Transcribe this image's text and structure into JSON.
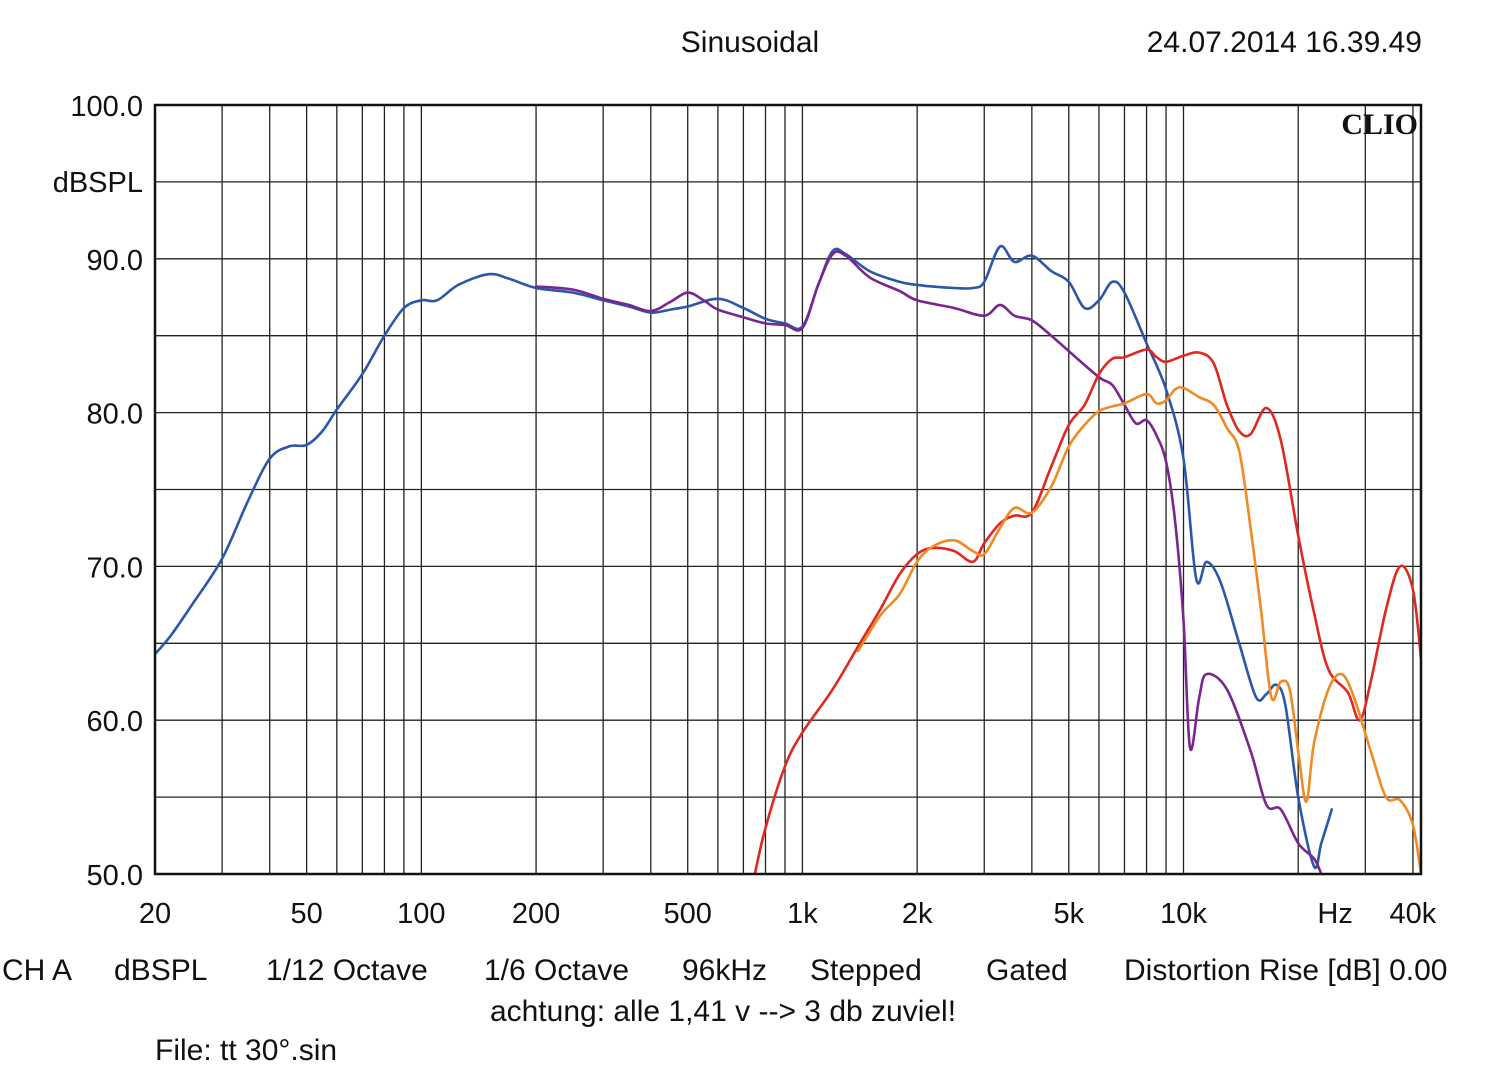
{
  "header": {
    "title": "Sinusoidal",
    "timestamp": "24.07.2014 16.39.49"
  },
  "chart_data": {
    "type": "line",
    "title": "Sinusoidal",
    "watermark": "CLIO",
    "ylabel": "dBSPL",
    "xlabel": "Hz",
    "xscale": "log",
    "xlim": [
      20,
      42000
    ],
    "ylim": [
      50,
      100
    ],
    "grid": true,
    "yticks": [
      {
        "v": 100,
        "label": "100.0"
      },
      {
        "v": 90,
        "label": "90.0"
      },
      {
        "v": 80,
        "label": "80.0"
      },
      {
        "v": 70,
        "label": "70.0"
      },
      {
        "v": 60,
        "label": "60.0"
      },
      {
        "v": 50,
        "label": "50.0"
      }
    ],
    "xticks": [
      {
        "v": 20,
        "label": "20"
      },
      {
        "v": 50,
        "label": "50"
      },
      {
        "v": 100,
        "label": "100"
      },
      {
        "v": 200,
        "label": "200"
      },
      {
        "v": 500,
        "label": "500"
      },
      {
        "v": 1000,
        "label": "1k"
      },
      {
        "v": 2000,
        "label": "2k"
      },
      {
        "v": 5000,
        "label": "5k"
      },
      {
        "v": 10000,
        "label": "10k"
      },
      {
        "v": 40000,
        "label": "40k"
      }
    ],
    "series": [
      {
        "color": "#2b57a8",
        "points": [
          [
            20,
            64.3
          ],
          [
            22,
            65.5
          ],
          [
            25,
            67.5
          ],
          [
            30,
            70.5
          ],
          [
            35,
            74.2
          ],
          [
            40,
            77.0
          ],
          [
            45,
            77.8
          ],
          [
            50,
            77.9
          ],
          [
            55,
            78.8
          ],
          [
            60,
            80.2
          ],
          [
            70,
            82.5
          ],
          [
            80,
            85.0
          ],
          [
            90,
            86.8
          ],
          [
            100,
            87.3
          ],
          [
            110,
            87.3
          ],
          [
            125,
            88.3
          ],
          [
            150,
            89.0
          ],
          [
            170,
            88.7
          ],
          [
            200,
            88.1
          ],
          [
            250,
            87.8
          ],
          [
            300,
            87.3
          ],
          [
            350,
            86.9
          ],
          [
            400,
            86.5
          ],
          [
            450,
            86.7
          ],
          [
            500,
            86.9
          ],
          [
            600,
            87.4
          ],
          [
            700,
            86.8
          ],
          [
            800,
            86.1
          ],
          [
            900,
            85.8
          ],
          [
            1000,
            85.6
          ],
          [
            1100,
            88.3
          ],
          [
            1200,
            90.5
          ],
          [
            1300,
            90.3
          ],
          [
            1500,
            89.2
          ],
          [
            1800,
            88.5
          ],
          [
            2000,
            88.3
          ],
          [
            2500,
            88.1
          ],
          [
            2800,
            88.1
          ],
          [
            3000,
            88.5
          ],
          [
            3300,
            90.8
          ],
          [
            3600,
            89.8
          ],
          [
            4000,
            90.2
          ],
          [
            4500,
            89.2
          ],
          [
            5000,
            88.5
          ],
          [
            5500,
            86.8
          ],
          [
            6000,
            87.3
          ],
          [
            6500,
            88.5
          ],
          [
            7000,
            87.8
          ],
          [
            8000,
            84.5
          ],
          [
            9000,
            81.5
          ],
          [
            10000,
            77.0
          ],
          [
            10800,
            69.2
          ],
          [
            11500,
            70.3
          ],
          [
            12500,
            69.0
          ],
          [
            14000,
            65.0
          ],
          [
            15500,
            61.5
          ],
          [
            16500,
            61.7
          ],
          [
            17500,
            62.3
          ],
          [
            18500,
            61.0
          ],
          [
            20000,
            55.0
          ],
          [
            22000,
            50.5
          ],
          [
            23000,
            52.0
          ],
          [
            24500,
            54.2
          ]
        ]
      },
      {
        "color": "#7a2590",
        "points": [
          [
            200,
            88.2
          ],
          [
            250,
            88.0
          ],
          [
            300,
            87.4
          ],
          [
            350,
            87.0
          ],
          [
            400,
            86.6
          ],
          [
            450,
            87.2
          ],
          [
            500,
            87.8
          ],
          [
            550,
            87.3
          ],
          [
            600,
            86.7
          ],
          [
            700,
            86.2
          ],
          [
            800,
            85.8
          ],
          [
            900,
            85.7
          ],
          [
            1000,
            85.5
          ],
          [
            1100,
            88.3
          ],
          [
            1200,
            90.3
          ],
          [
            1300,
            90.2
          ],
          [
            1500,
            88.8
          ],
          [
            1800,
            87.9
          ],
          [
            2000,
            87.3
          ],
          [
            2500,
            86.8
          ],
          [
            3000,
            86.3
          ],
          [
            3300,
            87.0
          ],
          [
            3600,
            86.3
          ],
          [
            4000,
            86.0
          ],
          [
            4500,
            85.0
          ],
          [
            5000,
            84.0
          ],
          [
            6000,
            82.3
          ],
          [
            6500,
            81.8
          ],
          [
            7000,
            80.5
          ],
          [
            7500,
            79.3
          ],
          [
            8000,
            79.5
          ],
          [
            8500,
            78.5
          ],
          [
            9000,
            76.8
          ],
          [
            9500,
            73.0
          ],
          [
            10000,
            66.5
          ],
          [
            10400,
            58.2
          ],
          [
            11000,
            61.5
          ],
          [
            11500,
            63.0
          ],
          [
            13000,
            62.0
          ],
          [
            15000,
            58.0
          ],
          [
            16500,
            54.5
          ],
          [
            18000,
            54.2
          ],
          [
            20000,
            52.0
          ],
          [
            22000,
            51.0
          ],
          [
            23000,
            50.0
          ]
        ]
      },
      {
        "color": "#e02820",
        "points": [
          [
            750,
            50.0
          ],
          [
            800,
            53.0
          ],
          [
            900,
            57.0
          ],
          [
            1000,
            59.2
          ],
          [
            1200,
            62.0
          ],
          [
            1400,
            64.8
          ],
          [
            1600,
            67.2
          ],
          [
            1800,
            69.5
          ],
          [
            2000,
            70.8
          ],
          [
            2200,
            71.2
          ],
          [
            2500,
            71.0
          ],
          [
            2800,
            70.3
          ],
          [
            3000,
            71.5
          ],
          [
            3300,
            72.8
          ],
          [
            3600,
            73.3
          ],
          [
            4000,
            73.5
          ],
          [
            4500,
            76.5
          ],
          [
            5000,
            79.2
          ],
          [
            5500,
            80.5
          ],
          [
            6000,
            82.5
          ],
          [
            6500,
            83.5
          ],
          [
            7000,
            83.6
          ],
          [
            8000,
            84.1
          ],
          [
            8500,
            83.6
          ],
          [
            9000,
            83.3
          ],
          [
            10000,
            83.7
          ],
          [
            11000,
            83.9
          ],
          [
            12000,
            83.2
          ],
          [
            13000,
            80.5
          ],
          [
            14000,
            78.8
          ],
          [
            15000,
            78.6
          ],
          [
            16500,
            80.3
          ],
          [
            18000,
            78.2
          ],
          [
            20000,
            72.0
          ],
          [
            22000,
            67.0
          ],
          [
            24000,
            63.3
          ],
          [
            27000,
            61.8
          ],
          [
            29000,
            60.0
          ],
          [
            31000,
            62.5
          ],
          [
            34000,
            67.2
          ],
          [
            37000,
            70.0
          ],
          [
            40000,
            68.5
          ],
          [
            42000,
            64.0
          ]
        ]
      },
      {
        "color": "#f08a22",
        "points": [
          [
            1400,
            64.5
          ],
          [
            1600,
            66.8
          ],
          [
            1800,
            68.2
          ],
          [
            2000,
            70.3
          ],
          [
            2200,
            71.3
          ],
          [
            2500,
            71.7
          ],
          [
            2800,
            71.0
          ],
          [
            3000,
            70.8
          ],
          [
            3300,
            72.5
          ],
          [
            3600,
            73.8
          ],
          [
            4000,
            73.5
          ],
          [
            4500,
            75.2
          ],
          [
            5000,
            77.8
          ],
          [
            5500,
            79.2
          ],
          [
            6000,
            80.1
          ],
          [
            6500,
            80.4
          ],
          [
            7000,
            80.6
          ],
          [
            8000,
            81.2
          ],
          [
            8500,
            80.6
          ],
          [
            9000,
            80.8
          ],
          [
            9500,
            81.5
          ],
          [
            10000,
            81.6
          ],
          [
            11000,
            81.0
          ],
          [
            12000,
            80.5
          ],
          [
            13000,
            79.0
          ],
          [
            14000,
            77.5
          ],
          [
            15000,
            72.5
          ],
          [
            16000,
            67.0
          ],
          [
            17000,
            61.5
          ],
          [
            18000,
            62.5
          ],
          [
            19000,
            62.0
          ],
          [
            20000,
            58.0
          ],
          [
            21000,
            54.7
          ],
          [
            22000,
            58.5
          ],
          [
            24000,
            62.0
          ],
          [
            26000,
            63.0
          ],
          [
            28000,
            61.5
          ],
          [
            31000,
            58.0
          ],
          [
            34000,
            55.0
          ],
          [
            37000,
            54.8
          ],
          [
            40000,
            53.2
          ],
          [
            42000,
            50.0
          ]
        ]
      }
    ]
  },
  "footer": {
    "channel": "CH A",
    "unit": "dBSPL",
    "resolution": "1/12 Octave",
    "smoothing": "1/6 Octave",
    "sample_rate": "96kHz",
    "mode": "Stepped",
    "window": "Gated",
    "distortion": "Distortion Rise [dB] 0.00",
    "note": "achtung: alle 1,41 v --> 3 db zuviel!",
    "file": "File: tt 30°.sin"
  }
}
